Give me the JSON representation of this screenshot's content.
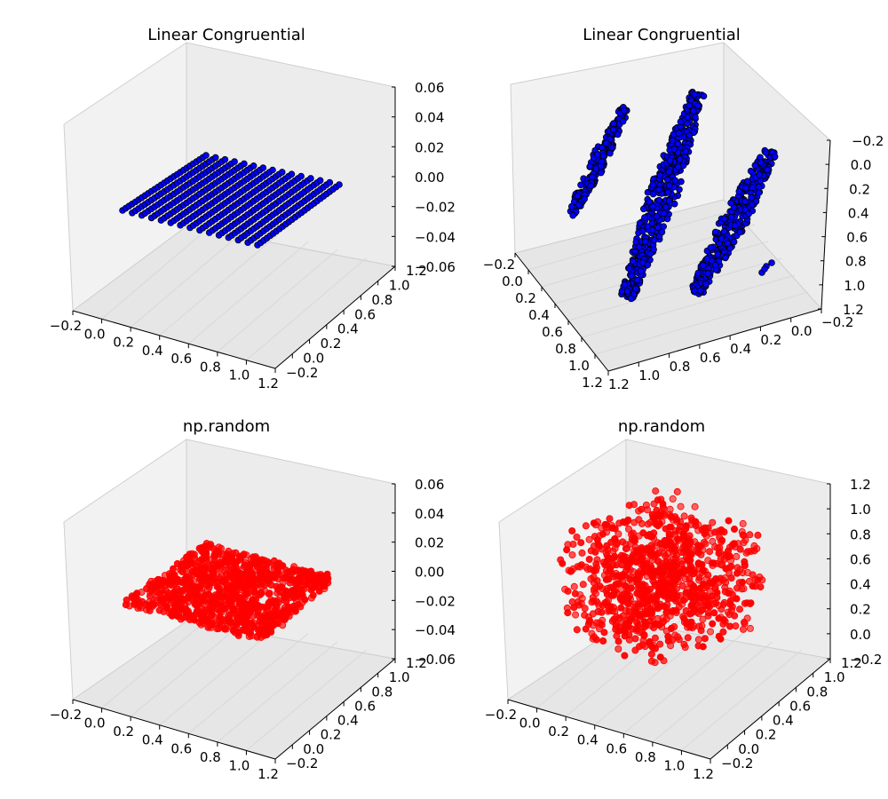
{
  "figure": {
    "background": "#ffffff"
  },
  "chart_data": [
    {
      "type": "scatter3d",
      "title": "Linear Congruential",
      "point_color": "#0000ff",
      "edge_color": "#000000",
      "generator": "linear congruential (lattice pattern)",
      "point_count_approx": 1000,
      "x_ticks": [
        "−0.2",
        "0.0",
        "0.2",
        "0.4",
        "0.6",
        "0.8",
        "1.0",
        "1.2"
      ],
      "y_ticks": [
        "−0.2",
        "0.0",
        "0.2",
        "0.4",
        "0.6",
        "0.8",
        "1.0",
        "1.2"
      ],
      "z_ticks": [
        "0.06",
        "0.04",
        "0.02",
        "0.00",
        "−0.02",
        "−0.04",
        "−0.06"
      ],
      "xlim": [
        -0.2,
        1.2
      ],
      "ylim": [
        -0.2,
        1.2
      ],
      "zlim": [
        -0.06,
        0.06
      ],
      "grid": true
    },
    {
      "type": "scatter3d",
      "title": "Linear Congruential",
      "point_color": "#0000ff",
      "edge_color": "#000000",
      "generator": "linear congruential (points fall on parallel planes)",
      "point_count_approx": 1000,
      "x_ticks": [
        "−0.2",
        "0.0",
        "0.2",
        "0.4",
        "0.6",
        "0.8",
        "1.0",
        "1.2"
      ],
      "y_ticks": [
        "1.2",
        "1.0",
        "0.8",
        "0.6",
        "0.4",
        "0.2",
        "0.0",
        "−0.2"
      ],
      "z_ticks": [
        "−0.2",
        "0.0",
        "0.2",
        "0.4",
        "0.6",
        "0.8",
        "1.0",
        "1.2"
      ],
      "xlim": [
        -0.2,
        1.2
      ],
      "ylim": [
        -0.2,
        1.2
      ],
      "zlim": [
        -0.2,
        1.2
      ],
      "grid": true
    },
    {
      "type": "scatter3d",
      "title": "np.random",
      "point_color": "#ff0000",
      "edge_color": "#ff0000",
      "generator": "numpy uniform random",
      "point_count_approx": 1000,
      "x_ticks": [
        "−0.2",
        "0.0",
        "0.2",
        "0.4",
        "0.6",
        "0.8",
        "1.0",
        "1.2"
      ],
      "y_ticks": [
        "−0.2",
        "0.0",
        "0.2",
        "0.4",
        "0.6",
        "0.8",
        "1.0",
        "1.2"
      ],
      "z_ticks": [
        "0.06",
        "0.04",
        "0.02",
        "0.00",
        "−0.02",
        "−0.04",
        "−0.06"
      ],
      "xlim": [
        -0.2,
        1.2
      ],
      "ylim": [
        -0.2,
        1.2
      ],
      "zlim": [
        -0.06,
        0.06
      ],
      "grid": true
    },
    {
      "type": "scatter3d",
      "title": "np.random",
      "point_color": "#ff0000",
      "edge_color": "#ff0000",
      "generator": "numpy uniform random (fills unit cube)",
      "point_count_approx": 1000,
      "x_ticks": [
        "−0.2",
        "0.0",
        "0.2",
        "0.4",
        "0.6",
        "0.8",
        "1.0",
        "1.2"
      ],
      "y_ticks": [
        "−0.2",
        "0.0",
        "0.2",
        "0.4",
        "0.6",
        "0.8",
        "1.0",
        "1.2"
      ],
      "z_ticks": [
        "1.2",
        "1.0",
        "0.8",
        "0.6",
        "0.4",
        "0.2",
        "0.0",
        "−0.2"
      ],
      "xlim": [
        -0.2,
        1.2
      ],
      "ylim": [
        -0.2,
        1.2
      ],
      "zlim": [
        -0.2,
        1.2
      ],
      "grid": true
    }
  ]
}
